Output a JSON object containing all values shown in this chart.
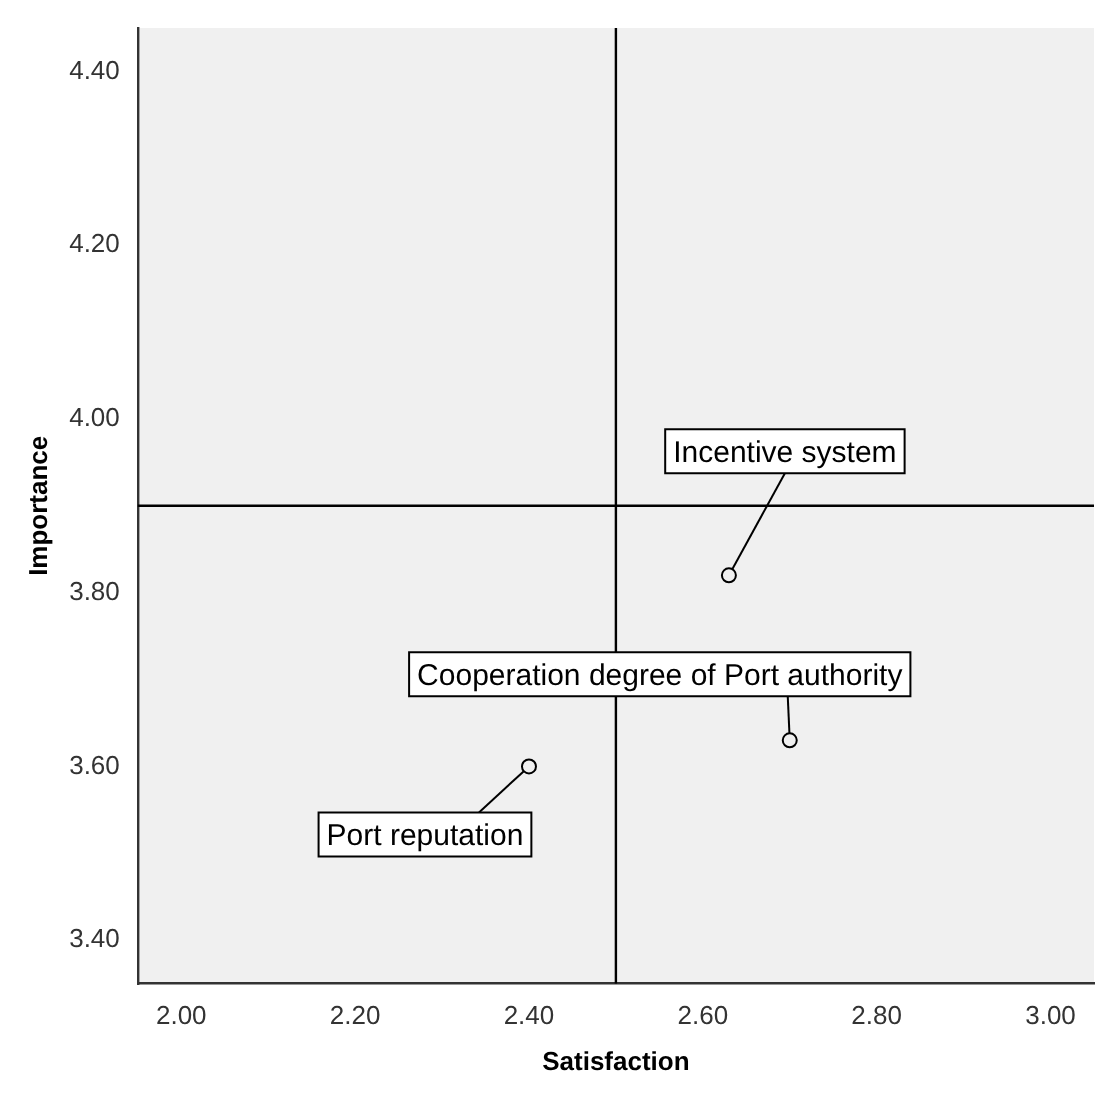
{
  "chart_data": {
    "type": "scatter",
    "xlabel": "Satisfaction",
    "ylabel": "Importance",
    "series": [
      {
        "color": "#000000",
        "x": [
          2.63,
          2.7,
          2.4
        ],
        "values": [
          3.82,
          3.63,
          3.6
        ]
      }
    ],
    "marker": "circle",
    "grid": false,
    "legend": false,
    "xlim": [
      1.95,
      3.05
    ],
    "xticks": [
      {
        "value": 2.0,
        "label": "2.00"
      },
      {
        "value": 2.2,
        "label": "2.20"
      },
      {
        "value": 2.4,
        "label": "2.40"
      },
      {
        "value": 2.6,
        "label": "2.60"
      },
      {
        "value": 2.8,
        "label": "2.80"
      },
      {
        "value": 3.0,
        "label": "3.00"
      }
    ],
    "ylim": [
      3.35,
      4.45
    ],
    "yticks": [
      {
        "value": 3.4,
        "label": "3.40"
      },
      {
        "value": 3.6,
        "label": "3.60"
      },
      {
        "value": 3.8,
        "label": "3.80"
      },
      {
        "value": 4.0,
        "label": "4.00"
      },
      {
        "value": 4.2,
        "label": "4.20"
      },
      {
        "value": 4.4,
        "label": "4.40"
      }
    ],
    "ref_lines": [
      {
        "axis": "x",
        "value": 2.5,
        "color": "#000000"
      },
      {
        "axis": "y",
        "value": 3.9,
        "color": "#000000"
      }
    ],
    "annotations": [
      {
        "text": "Incentive system",
        "x": 2.63,
        "y": 3.82
      },
      {
        "text": "Cooperation degree of Port authority",
        "x": 2.7,
        "y": 3.63
      },
      {
        "text": "Port reputation",
        "x": 2.4,
        "y": 3.6
      }
    ]
  }
}
